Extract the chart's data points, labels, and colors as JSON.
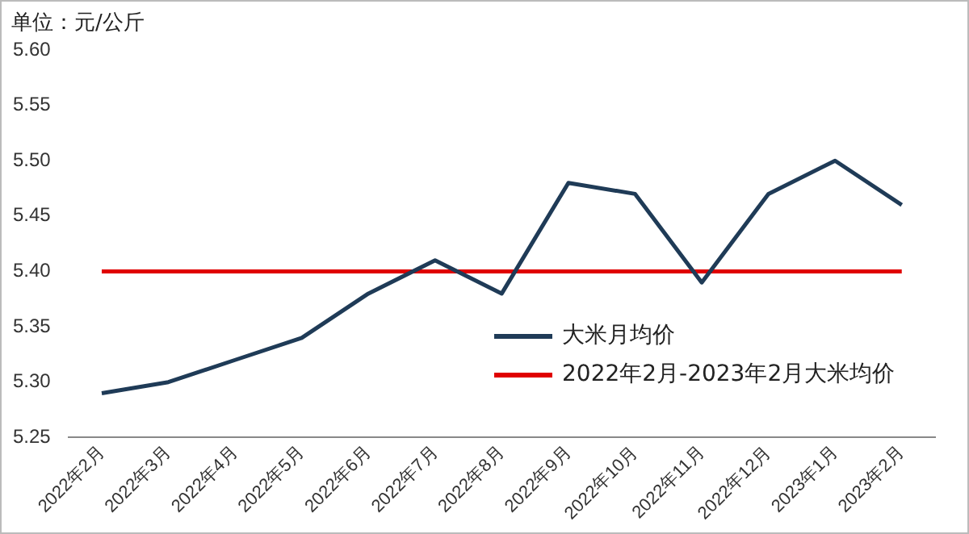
{
  "chart_data": {
    "type": "line",
    "ylabel": "单位：元/公斤",
    "categories": [
      "2022年2月",
      "2022年3月",
      "2022年4月",
      "2022年5月",
      "2022年6月",
      "2022年7月",
      "2022年8月",
      "2022年9月",
      "2022年10月",
      "2022年11月",
      "2022年12月",
      "2023年1月",
      "2023年2月"
    ],
    "series": [
      {
        "name": "大米月均价",
        "color": "#1f3b57",
        "values": [
          5.29,
          5.3,
          5.32,
          5.34,
          5.38,
          5.41,
          5.38,
          5.48,
          5.47,
          5.39,
          5.47,
          5.5,
          5.46
        ]
      },
      {
        "name": "2022年2月-2023年2月大米均价",
        "color": "#e00000",
        "values": [
          5.4,
          5.4,
          5.4,
          5.4,
          5.4,
          5.4,
          5.4,
          5.4,
          5.4,
          5.4,
          5.4,
          5.4,
          5.4
        ]
      }
    ],
    "ylim": [
      5.25,
      5.6
    ],
    "yticks": [
      {
        "value": 5.25,
        "label": "5.25"
      },
      {
        "value": 5.3,
        "label": "5.30"
      },
      {
        "value": 5.35,
        "label": "5.35"
      },
      {
        "value": 5.4,
        "label": "5.40"
      },
      {
        "value": 5.45,
        "label": "5.45"
      },
      {
        "value": 5.5,
        "label": "5.50"
      },
      {
        "value": 5.55,
        "label": "5.55"
      },
      {
        "value": 5.6,
        "label": "5.60"
      }
    ],
    "grid": false,
    "legend": "bottom right",
    "marker": "none",
    "line_style": "solid"
  }
}
